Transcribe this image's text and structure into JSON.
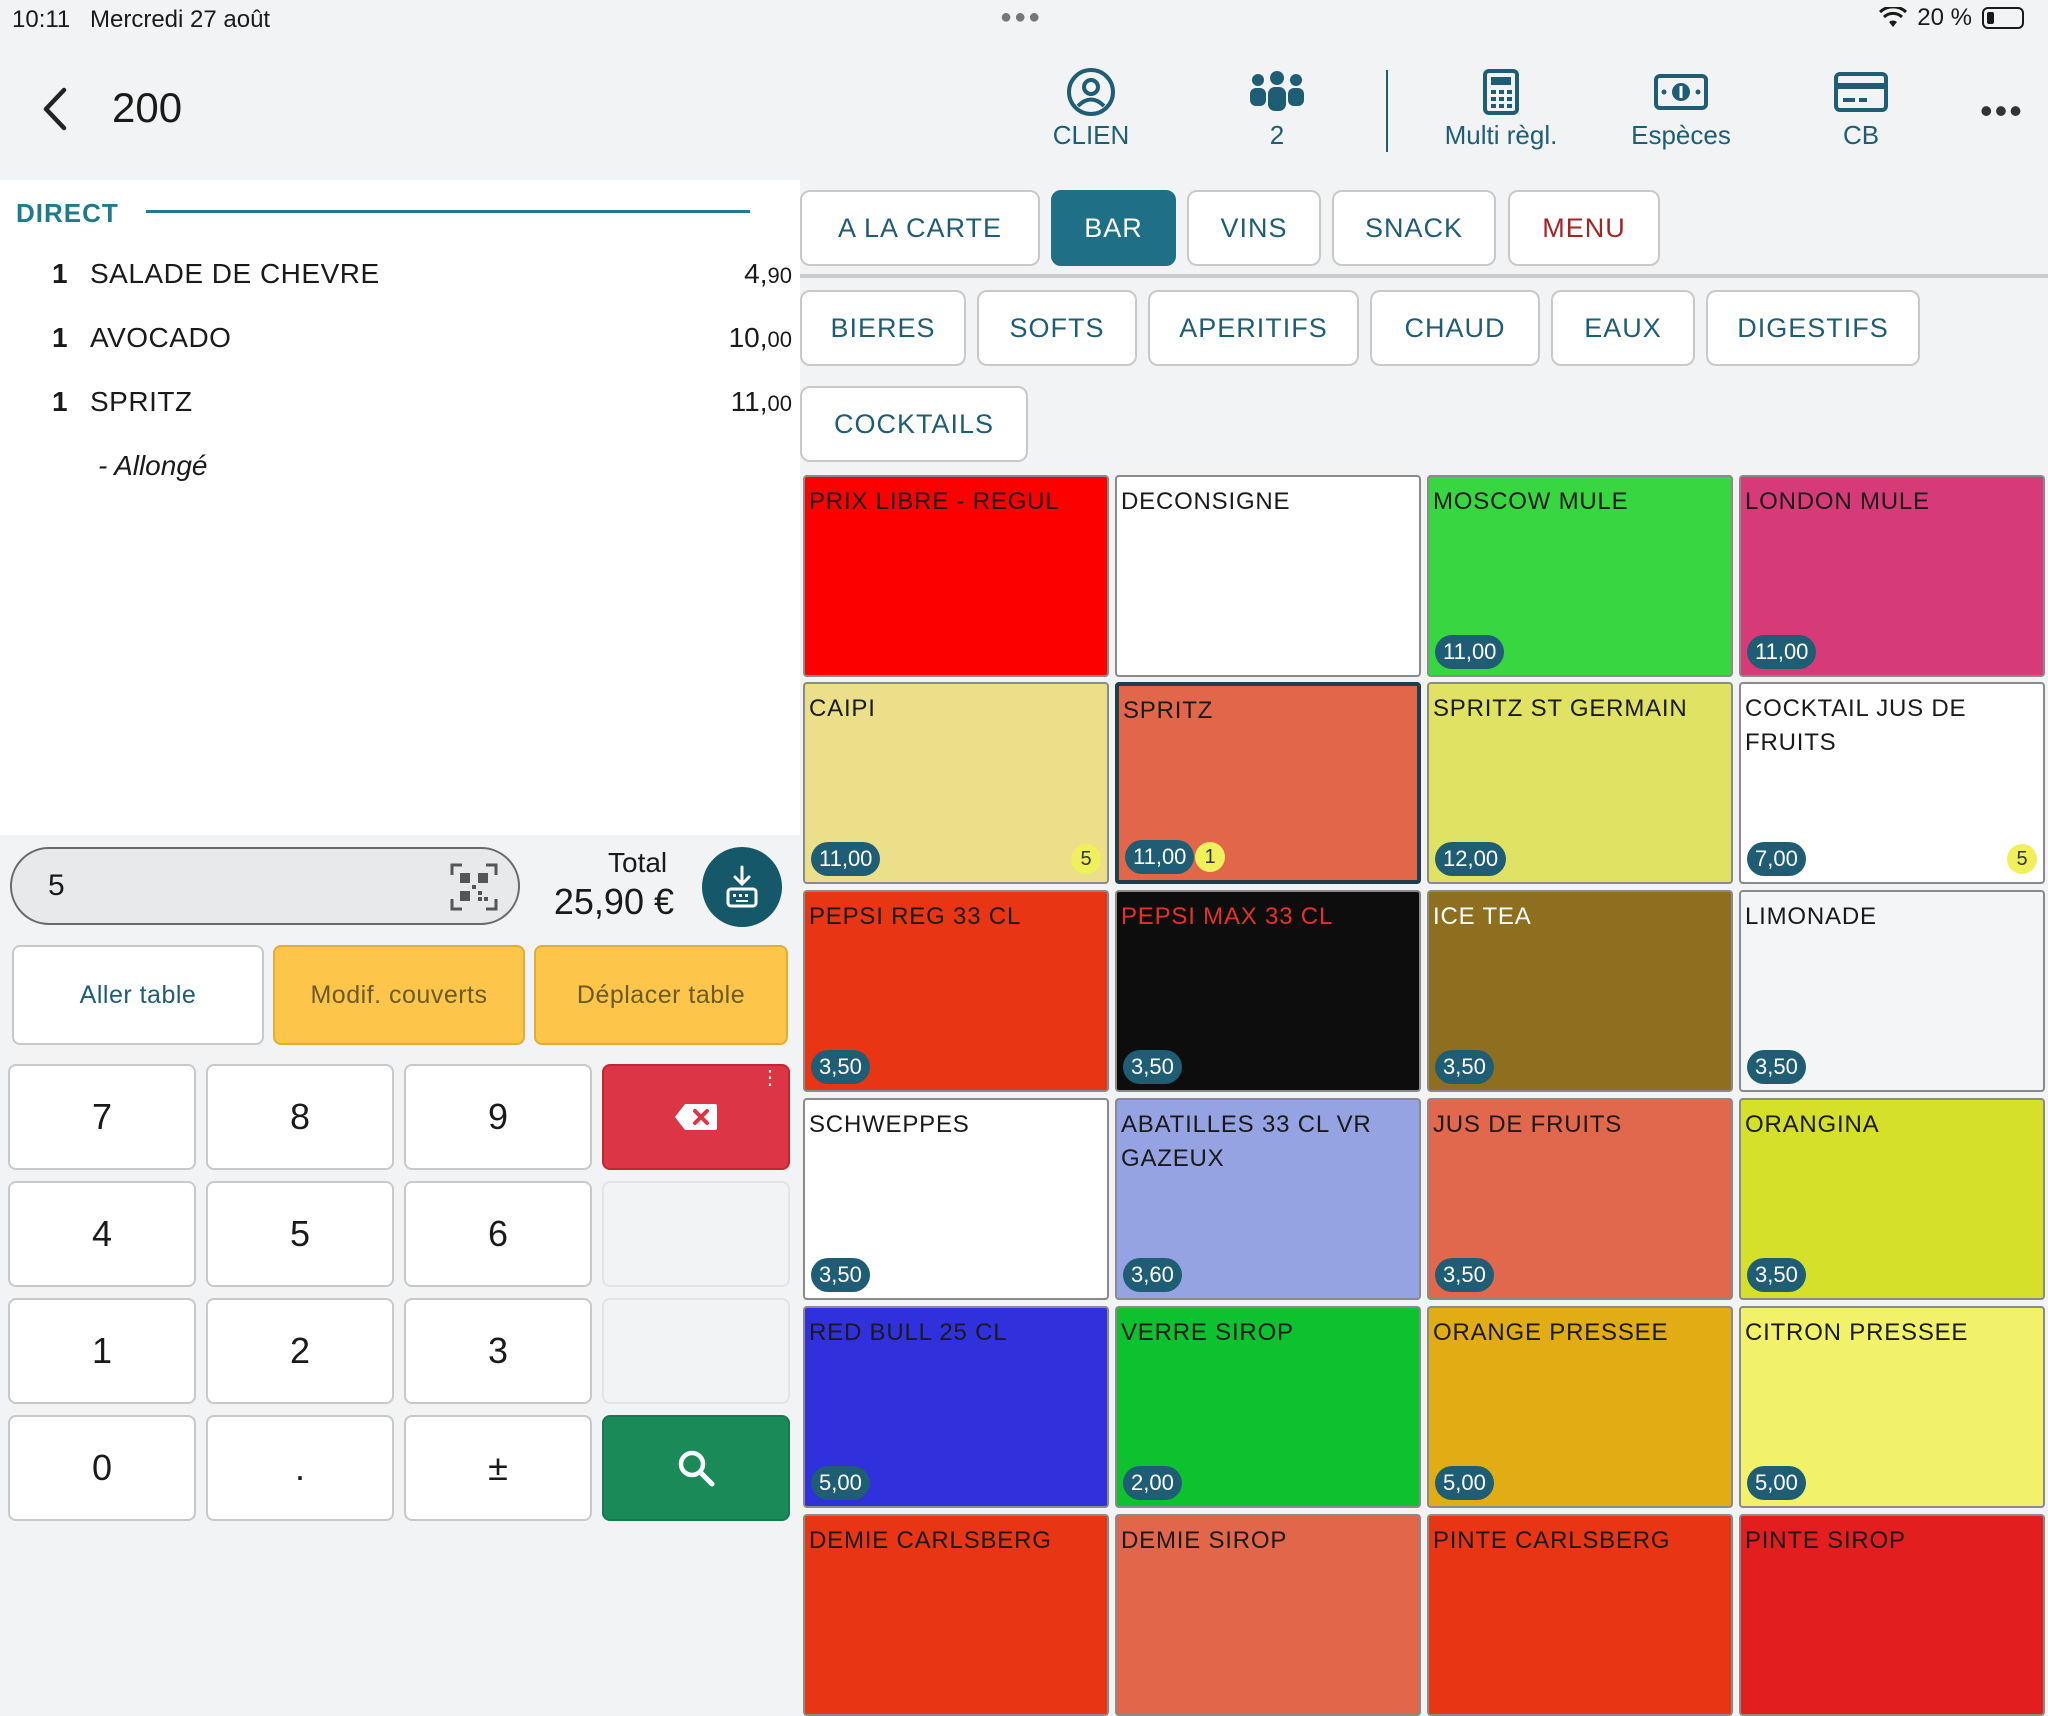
{
  "status_bar": {
    "time": "10:11",
    "date": "Mercredi 27 août",
    "battery": "20 %"
  },
  "header": {
    "table_number": "200",
    "buttons": [
      {
        "label": "CLIEN",
        "icon": "user-circle-icon"
      },
      {
        "label": "2",
        "icon": "people-icon"
      },
      {
        "label": "Multi règl.",
        "icon": "calculator-icon"
      },
      {
        "label": "Espèces",
        "icon": "banknote-icon"
      },
      {
        "label": "CB",
        "icon": "credit-card-icon"
      }
    ]
  },
  "order": {
    "section": "DIRECT",
    "lines": [
      {
        "qty": "1",
        "name": "SALADE DE CHEVRE",
        "price_int": "4,",
        "price_dec": "90"
      },
      {
        "qty": "1",
        "name": "AVOCADO",
        "price_int": "10,",
        "price_dec": "00"
      },
      {
        "qty": "1",
        "name": "SPRITZ",
        "price_int": "11,",
        "price_dec": "00"
      }
    ],
    "modifier": "-  Allongé"
  },
  "input": {
    "value": "5",
    "total_label": "Total",
    "total_value": "25,90 €"
  },
  "actions": {
    "go_table": "Aller table",
    "modify_covers": "Modif. couverts",
    "move_table": "Déplacer table"
  },
  "keypad": {
    "k7": "7",
    "k8": "8",
    "k9": "9",
    "k4": "4",
    "k5": "5",
    "k6": "6",
    "k1": "1",
    "k2": "2",
    "k3": "3",
    "k0": "0",
    "dot": ".",
    "plusminus": "±"
  },
  "categories": {
    "tabs": [
      "A LA CARTE",
      "BAR",
      "VINS",
      "SNACK",
      "MENU"
    ],
    "active_tab": "BAR",
    "subcats": [
      "BIERES",
      "SOFTS",
      "APERITIFS",
      "CHAUD",
      "EAUX",
      "DIGESTIFS",
      "COCKTAILS"
    ]
  },
  "products": [
    {
      "name": "PRIX LIBRE - REGUL",
      "price": "",
      "color": "#fc0000",
      "text_color": "#1a1a1a"
    },
    {
      "name": "DECONSIGNE",
      "price": "",
      "color": "#ffffff",
      "text_color": "#1a1a1a"
    },
    {
      "name": "MOSCOW MULE",
      "price": "11,00",
      "color": "#38d640",
      "text_color": "#1a1a1a"
    },
    {
      "name": "LONDON MULE",
      "price": "11,00",
      "color": "#d73b77",
      "text_color": "#1a1a1a"
    },
    {
      "name": "CAIPI",
      "price": "11,00",
      "color": "#ebdf89",
      "text_color": "#1a1a1a",
      "badge": "5"
    },
    {
      "name": "SPRITZ",
      "price": "11,00",
      "color": "#e2674a",
      "text_color": "#1a1a1a",
      "badge": "1",
      "selected": true
    },
    {
      "name": "SPRITZ ST GERMAIN",
      "price": "12,00",
      "color": "#e0e264",
      "text_color": "#1a1a1a"
    },
    {
      "name": "COCKTAIL JUS DE FRUITS",
      "price": "7,00",
      "color": "#ffffff",
      "text_color": "#1a1a1a",
      "badge": "5"
    },
    {
      "name": "PEPSI REG 33 CL",
      "price": "3,50",
      "color": "#e83513",
      "text_color": "#1a1a1a"
    },
    {
      "name": "PEPSI MAX 33 CL",
      "price": "3,50",
      "color": "#0d0d0d",
      "text_color": "#e8302a"
    },
    {
      "name": "ICE TEA",
      "price": "3,50",
      "color": "#8e6e1f",
      "text_color": "#ffffff"
    },
    {
      "name": "LIMONADE",
      "price": "3,50",
      "color": "#f4f5f7",
      "text_color": "#1a1a1a"
    },
    {
      "name": "SCHWEPPES",
      "price": "3,50",
      "color": "#ffffff",
      "text_color": "#1a1a1a"
    },
    {
      "name": "ABATILLES 33 CL VR GAZEUX",
      "price": "3,60",
      "color": "#95a3e2",
      "text_color": "#1a1a1a"
    },
    {
      "name": "JUS DE FRUITS",
      "price": "3,50",
      "color": "#e2684d",
      "text_color": "#1a1a1a"
    },
    {
      "name": "ORANGINA",
      "price": "3,50",
      "color": "#d4e02a",
      "text_color": "#1a1a1a"
    },
    {
      "name": "RED BULL 25 CL",
      "price": "5,00",
      "color": "#3030dd",
      "text_color": "#1a1a1a"
    },
    {
      "name": "VERRE SIROP",
      "price": "2,00",
      "color": "#0ec12e",
      "text_color": "#1a1a1a"
    },
    {
      "name": "ORANGE PRESSEE",
      "price": "5,00",
      "color": "#e2ac14",
      "text_color": "#1a1a1a"
    },
    {
      "name": "CITRON PRESSEE",
      "price": "5,00",
      "color": "#f2f26a",
      "text_color": "#1a1a1a"
    },
    {
      "name": "DEMIE CARLSBERG",
      "price": "",
      "color": "#e83513",
      "text_color": "#1a1a1a"
    },
    {
      "name": "DEMIE SIROP",
      "price": "",
      "color": "#e2674a",
      "text_color": "#1a1a1a"
    },
    {
      "name": "PINTE CARLSBERG",
      "price": "",
      "color": "#e83513",
      "text_color": "#1a1a1a"
    },
    {
      "name": "PINTE SIROP",
      "price": "",
      "color": "#e21e1e",
      "text_color": "#1a1a1a"
    }
  ]
}
